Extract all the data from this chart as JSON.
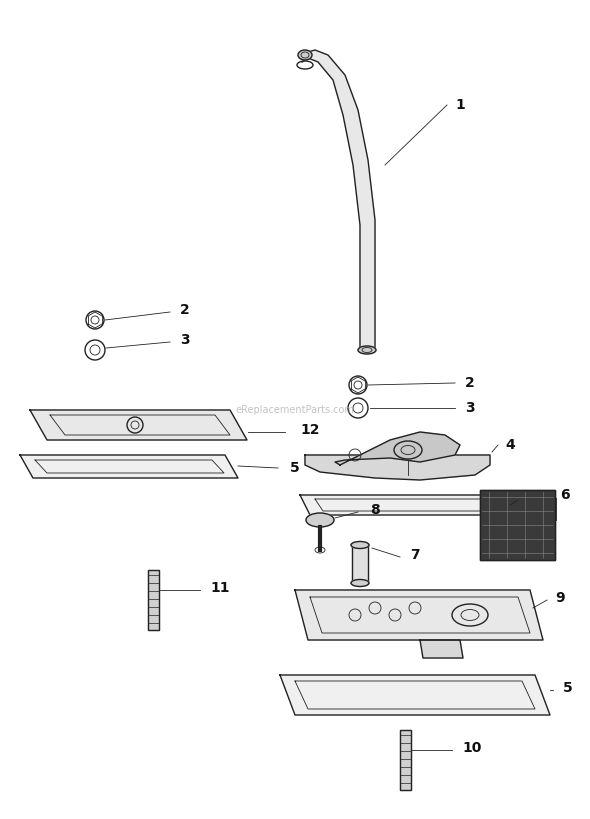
{
  "bg_color": "#ffffff",
  "line_color": "#222222",
  "label_color": "#111111",
  "watermark": "eReplacementParts.com",
  "lw_main": 1.0,
  "lw_thin": 0.6
}
